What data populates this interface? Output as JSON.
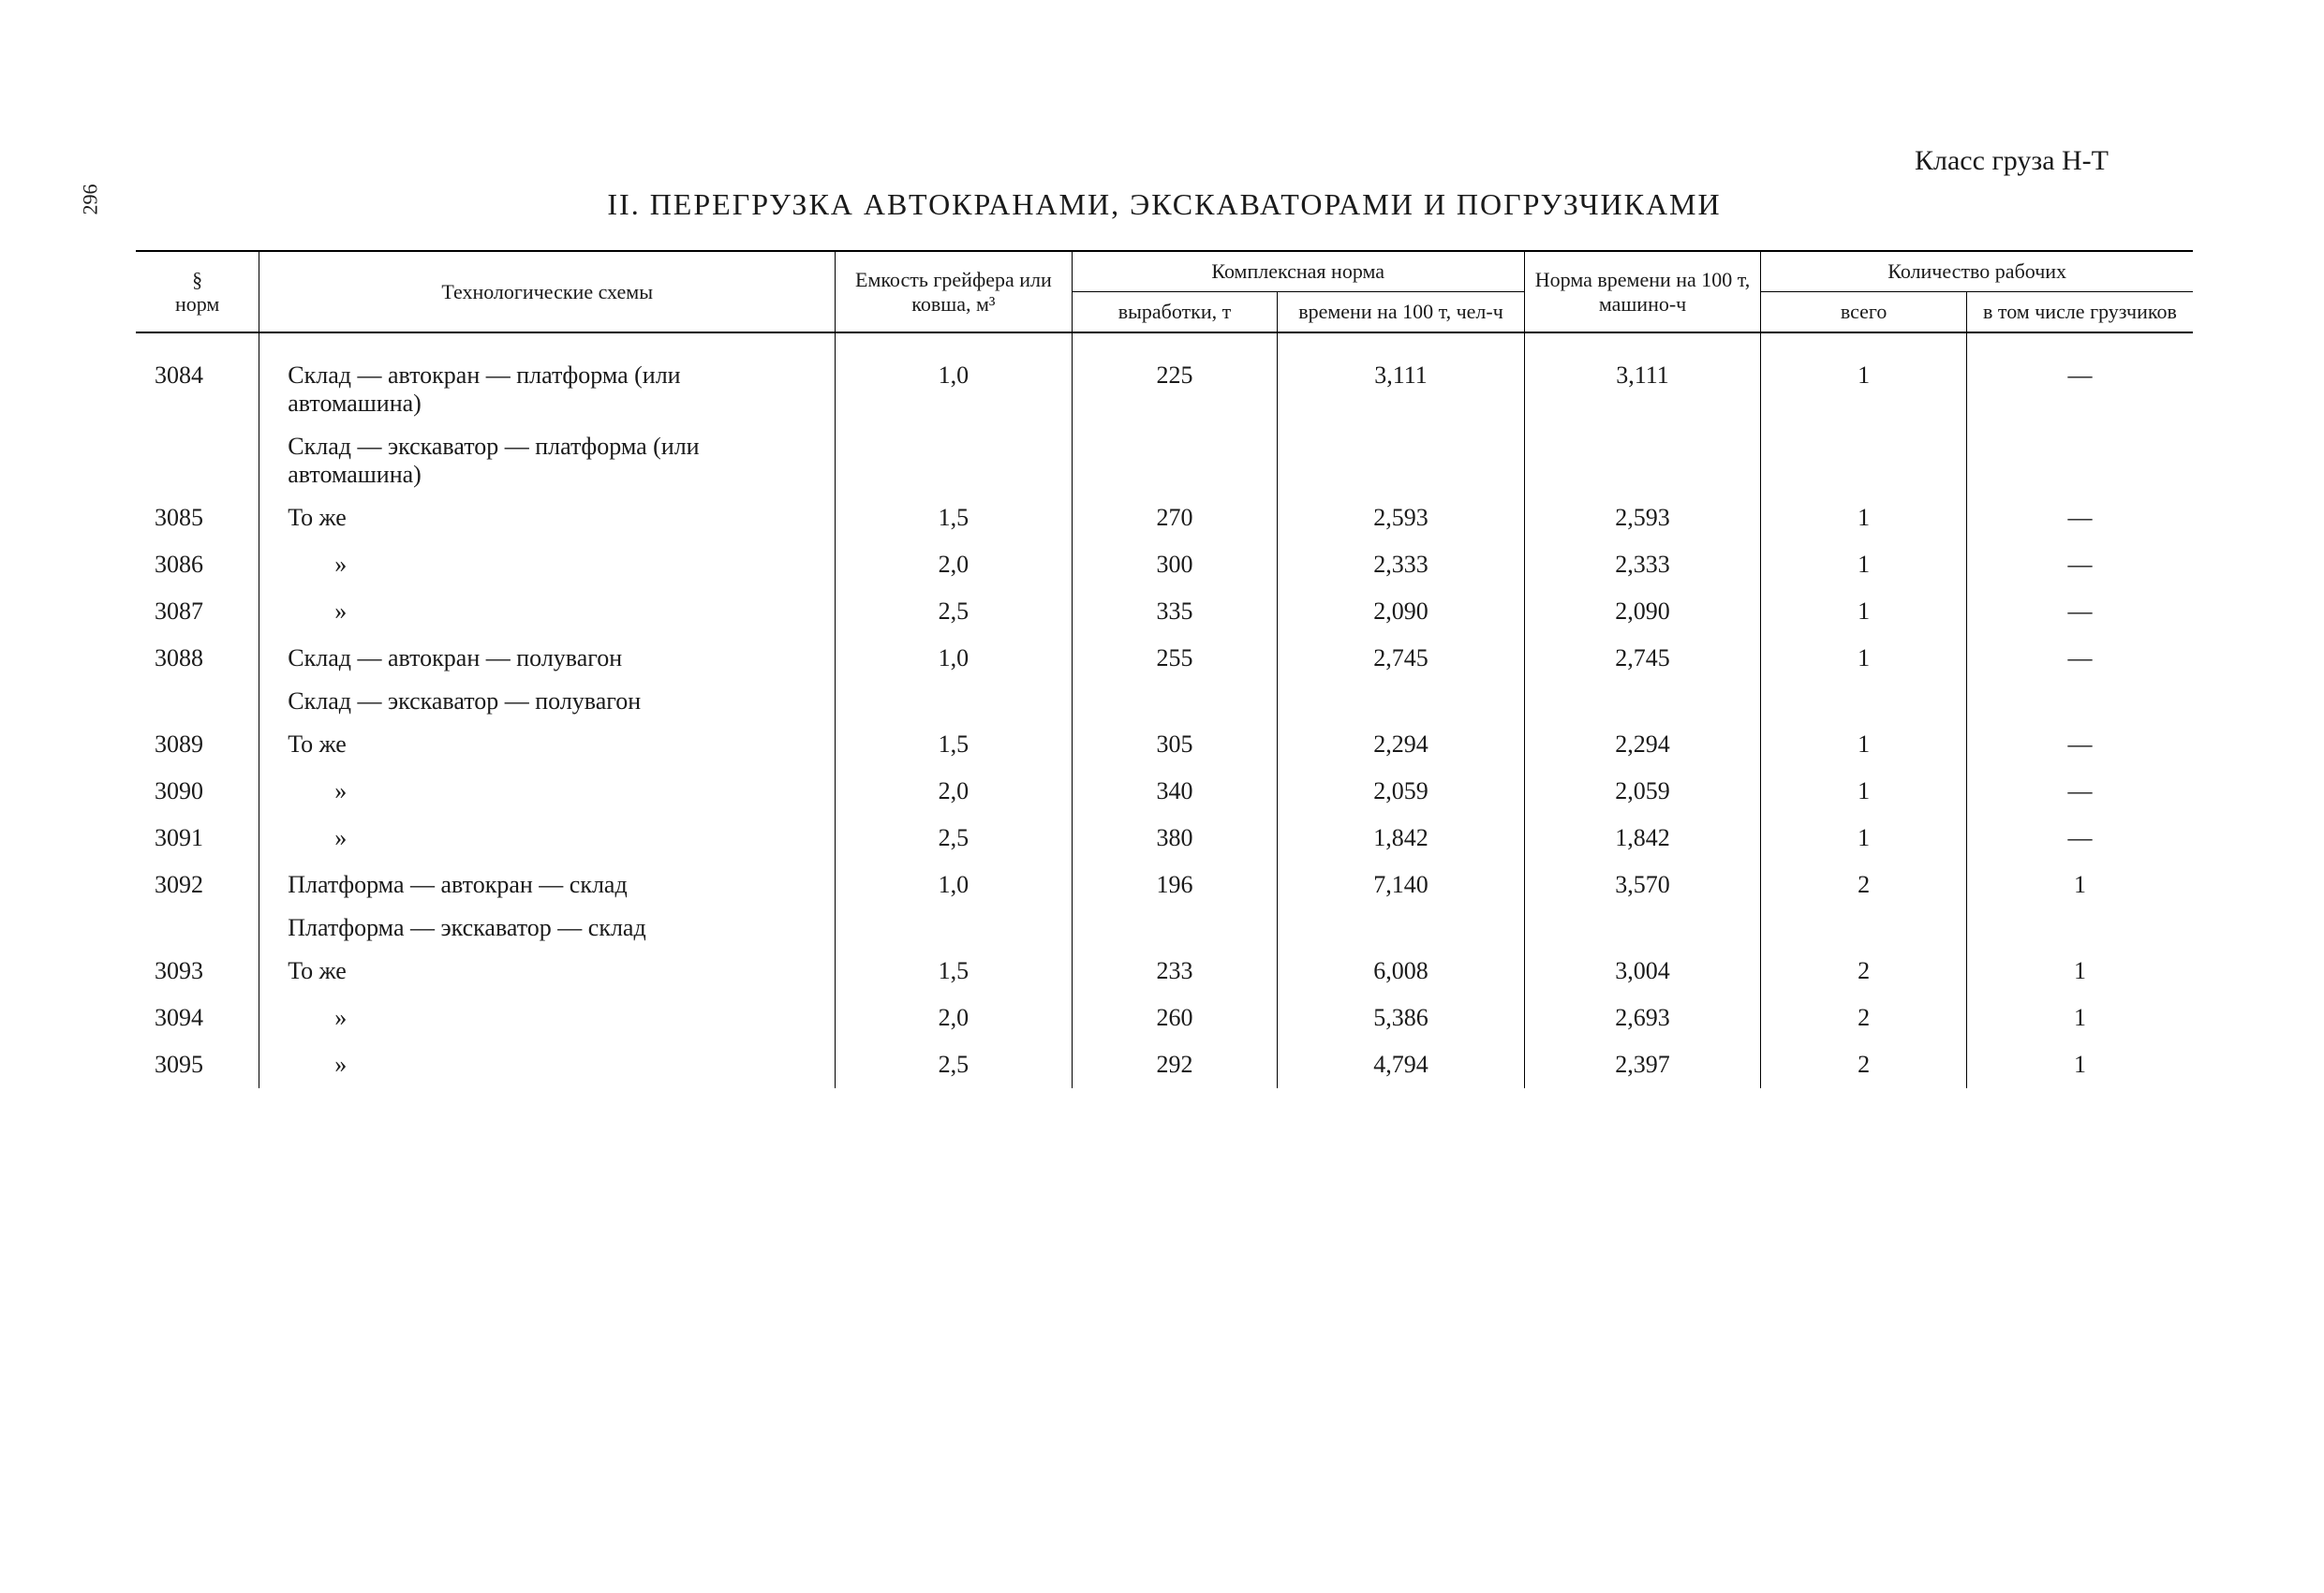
{
  "page_number": "296",
  "cargo_class": "Класс груза Н-Т",
  "title": "II. ПЕРЕГРУЗКА АВТОКРАНАМИ, ЭКСКАВАТОРАМИ И ПОГРУЗЧИКАМИ",
  "table": {
    "header": {
      "norm": "§\nнорм",
      "scheme": "Технологические схемы",
      "capacity": "Емкость грейфера или ковша, м³",
      "complex_norm": "Комплексная норма",
      "output": "выработки, т",
      "time_per_100": "времени на 100 т, чел-ч",
      "machine_time": "Норма времени на 100 т, машино-ч",
      "workers": "Количество рабочих",
      "total": "всего",
      "loaders": "в том числе грузчиков"
    },
    "rows": [
      {
        "norm": "3084",
        "scheme": "Склад — автокран — платформа (или автомашина)",
        "capacity": "1,0",
        "output": "225",
        "time": "3,111",
        "machine": "3,111",
        "total": "1",
        "loaders": "—",
        "type": "data"
      },
      {
        "norm": "",
        "scheme": "Склад — экскаватор — платформа (или автомашина)",
        "capacity": "",
        "output": "",
        "time": "",
        "machine": "",
        "total": "",
        "loaders": "",
        "type": "header"
      },
      {
        "norm": "3085",
        "scheme": "То же",
        "capacity": "1,5",
        "output": "270",
        "time": "2,593",
        "machine": "2,593",
        "total": "1",
        "loaders": "—",
        "type": "data"
      },
      {
        "norm": "3086",
        "scheme": "»",
        "capacity": "2,0",
        "output": "300",
        "time": "2,333",
        "machine": "2,333",
        "total": "1",
        "loaders": "—",
        "type": "ditto"
      },
      {
        "norm": "3087",
        "scheme": "»",
        "capacity": "2,5",
        "output": "335",
        "time": "2,090",
        "machine": "2,090",
        "total": "1",
        "loaders": "—",
        "type": "ditto"
      },
      {
        "norm": "3088",
        "scheme": "Склад — автокран — полувагон",
        "capacity": "1,0",
        "output": "255",
        "time": "2,745",
        "machine": "2,745",
        "total": "1",
        "loaders": "—",
        "type": "data"
      },
      {
        "norm": "",
        "scheme": "Склад — экскаватор — полувагон",
        "capacity": "",
        "output": "",
        "time": "",
        "machine": "",
        "total": "",
        "loaders": "",
        "type": "header"
      },
      {
        "norm": "3089",
        "scheme": "То же",
        "capacity": "1,5",
        "output": "305",
        "time": "2,294",
        "machine": "2,294",
        "total": "1",
        "loaders": "—",
        "type": "data"
      },
      {
        "norm": "3090",
        "scheme": "»",
        "capacity": "2,0",
        "output": "340",
        "time": "2,059",
        "machine": "2,059",
        "total": "1",
        "loaders": "—",
        "type": "ditto"
      },
      {
        "norm": "3091",
        "scheme": "»",
        "capacity": "2,5",
        "output": "380",
        "time": "1,842",
        "machine": "1,842",
        "total": "1",
        "loaders": "—",
        "type": "ditto"
      },
      {
        "norm": "3092",
        "scheme": "Платформа — автокран — склад",
        "capacity": "1,0",
        "output": "196",
        "time": "7,140",
        "machine": "3,570",
        "total": "2",
        "loaders": "1",
        "type": "data"
      },
      {
        "norm": "",
        "scheme": "Платформа — экскаватор — склад",
        "capacity": "",
        "output": "",
        "time": "",
        "machine": "",
        "total": "",
        "loaders": "",
        "type": "header"
      },
      {
        "norm": "3093",
        "scheme": "То же",
        "capacity": "1,5",
        "output": "233",
        "time": "6,008",
        "machine": "3,004",
        "total": "2",
        "loaders": "1",
        "type": "data"
      },
      {
        "norm": "3094",
        "scheme": "»",
        "capacity": "2,0",
        "output": "260",
        "time": "5,386",
        "machine": "2,693",
        "total": "2",
        "loaders": "1",
        "type": "ditto"
      },
      {
        "norm": "3095",
        "scheme": "»",
        "capacity": "2,5",
        "output": "292",
        "time": "4,794",
        "machine": "2,397",
        "total": "2",
        "loaders": "1",
        "type": "ditto"
      }
    ],
    "column_widths": {
      "norm": 120,
      "scheme": 560,
      "capacity": 230,
      "output": 200,
      "time": 240,
      "machine": 230,
      "total": 200,
      "loaders": 220
    },
    "colors": {
      "background": "#ffffff",
      "text": "#1a1a1a",
      "border": "#000000"
    },
    "typography": {
      "body_fontsize": 26,
      "header_fontsize": 22,
      "title_fontsize": 32,
      "font_family": "Times New Roman"
    }
  }
}
